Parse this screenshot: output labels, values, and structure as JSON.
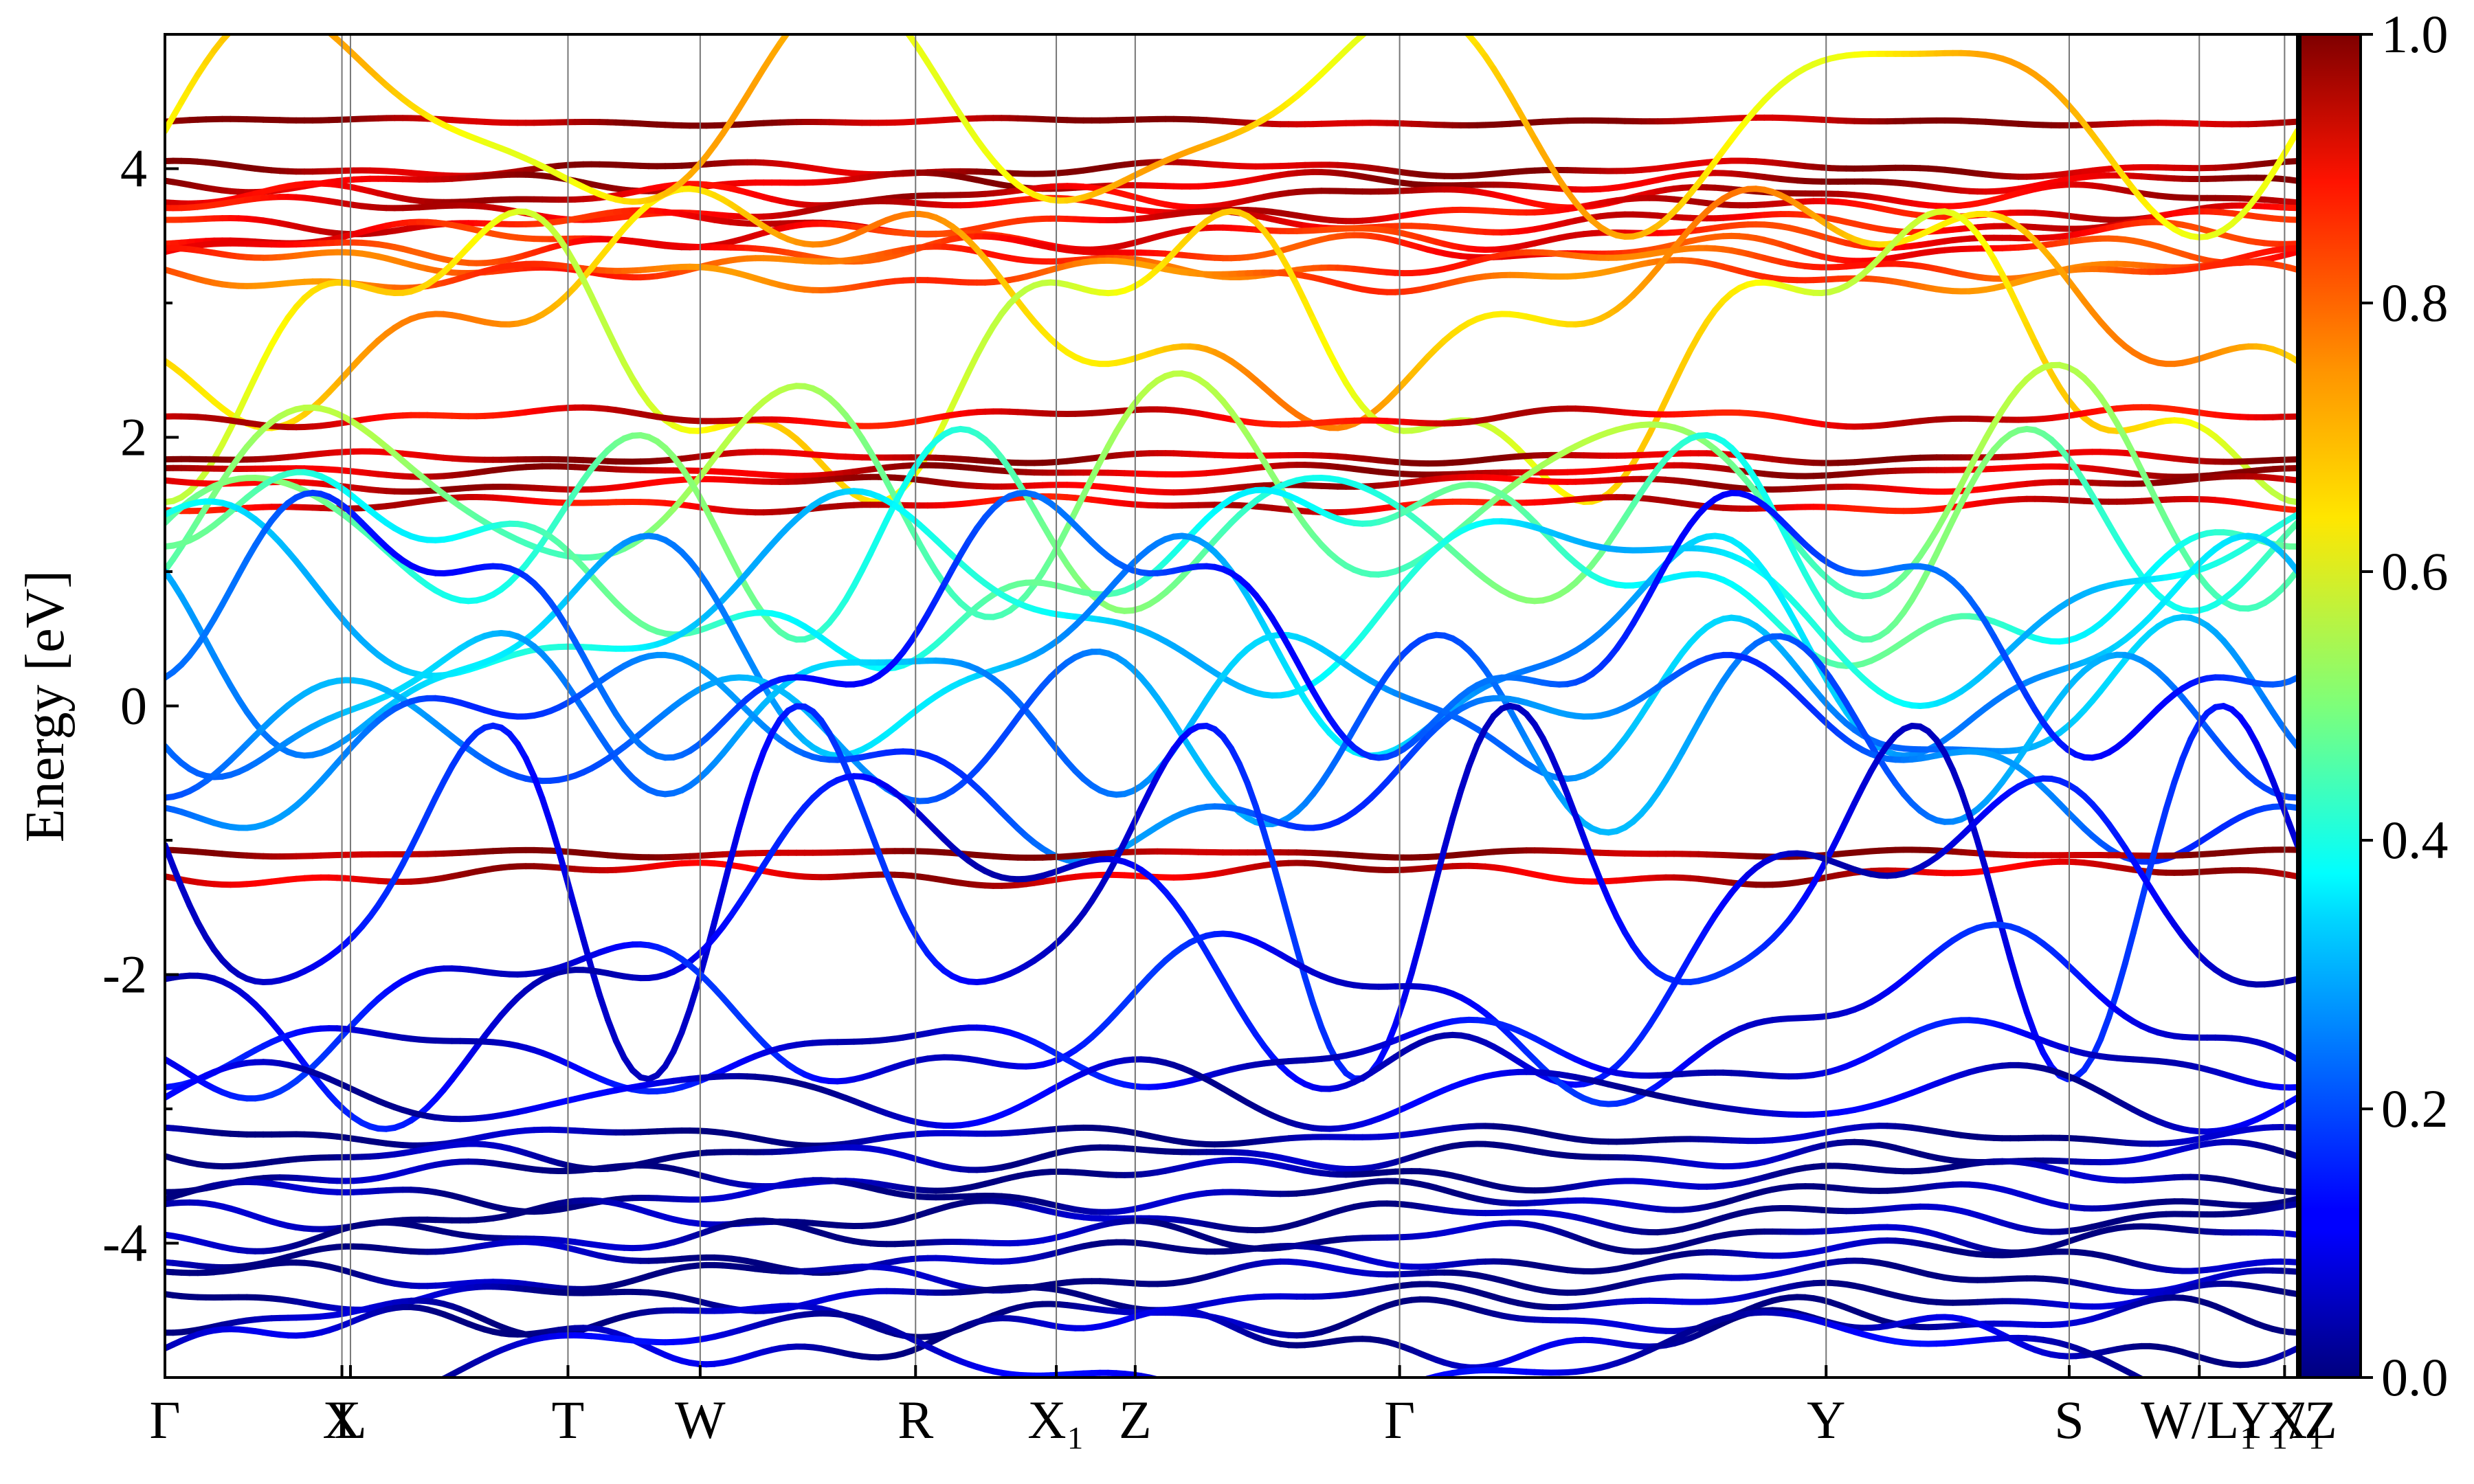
{
  "chart_data": {
    "type": "line",
    "title": "",
    "ylabel": "Energy [eV]",
    "xlabel": "",
    "ylim": [
      -5,
      5
    ],
    "y_ticks": [
      {
        "value": 4,
        "label": "4"
      },
      {
        "value": 2,
        "label": "2"
      },
      {
        "value": 0,
        "label": "0"
      },
      {
        "value": -2,
        "label": "-2"
      },
      {
        "value": -4,
        "label": "-4"
      }
    ],
    "k_path": [
      {
        "label": "Γ",
        "pos": 0.0
      },
      {
        "label": "X",
        "pos": 0.083
      },
      {
        "label": "L",
        "pos": 0.087
      },
      {
        "label": "T",
        "pos": 0.189
      },
      {
        "label": "W",
        "pos": 0.251
      },
      {
        "label": "R",
        "pos": 0.352
      },
      {
        "label": "X₁",
        "pos": 0.418
      },
      {
        "label": "Z",
        "pos": 0.455
      },
      {
        "label": "Γ",
        "pos": 0.579
      },
      {
        "label": "Y",
        "pos": 0.779
      },
      {
        "label": "S",
        "pos": 0.893
      },
      {
        "label": "W/L₁",
        "pos": 0.954
      },
      {
        "label": "Y₁/Z",
        "pos": 0.994
      },
      {
        "label": "X₁",
        "pos": 1.0
      }
    ],
    "colorbar": {
      "label": "",
      "range": [
        0.0,
        1.0
      ],
      "ticks": [
        "0.0",
        "0.2",
        "0.4",
        "0.6",
        "0.8",
        "1.0"
      ],
      "colormap": "jet"
    },
    "series": [
      {
        "kind": "flat",
        "energy": 4.35,
        "weight": 0.97,
        "amp": 0.02
      },
      {
        "kind": "flat",
        "energy": 4.0,
        "weight": 0.96,
        "amp": 0.04
      },
      {
        "kind": "flat",
        "energy": 3.9,
        "weight": 0.94,
        "amp": 0.05
      },
      {
        "kind": "flat",
        "energy": 3.8,
        "weight": 0.92,
        "amp": 0.06
      },
      {
        "kind": "flat",
        "energy": 3.7,
        "weight": 0.9,
        "amp": 0.06
      },
      {
        "kind": "flat",
        "energy": 3.6,
        "weight": 0.88,
        "amp": 0.06
      },
      {
        "kind": "flat",
        "energy": 3.5,
        "weight": 0.86,
        "amp": 0.07
      },
      {
        "kind": "flat",
        "energy": 3.4,
        "weight": 0.84,
        "amp": 0.07
      },
      {
        "kind": "flat",
        "energy": 3.3,
        "weight": 0.8,
        "amp": 0.08
      },
      {
        "kind": "flat",
        "energy": 3.2,
        "weight": 0.78,
        "amp": 0.08
      },
      {
        "kind": "disp",
        "energy": 3.0,
        "weight": 0.7,
        "amp": 0.7
      },
      {
        "kind": "disp",
        "energy": 2.6,
        "weight": 0.62,
        "amp": 0.9
      },
      {
        "kind": "disp",
        "energy": 4.4,
        "weight": 0.66,
        "amp": 0.7
      },
      {
        "kind": "flat",
        "energy": 2.15,
        "weight": 0.9,
        "amp": 0.05
      },
      {
        "kind": "flat",
        "energy": 1.85,
        "weight": 0.95,
        "amp": 0.03
      },
      {
        "kind": "flat",
        "energy": 1.75,
        "weight": 0.94,
        "amp": 0.03
      },
      {
        "kind": "flat",
        "energy": 1.65,
        "weight": 0.93,
        "amp": 0.04
      },
      {
        "kind": "flat",
        "energy": 1.5,
        "weight": 0.9,
        "amp": 0.04
      },
      {
        "kind": "disp",
        "energy": 1.6,
        "weight": 0.5,
        "amp": 0.7
      },
      {
        "kind": "disp",
        "energy": 1.3,
        "weight": 0.45,
        "amp": 0.6
      },
      {
        "kind": "disp",
        "energy": 1.0,
        "weight": 0.42,
        "amp": 0.55
      },
      {
        "kind": "disp",
        "energy": 0.8,
        "weight": 0.35,
        "amp": 0.6
      },
      {
        "kind": "disp",
        "energy": 0.4,
        "weight": 0.3,
        "amp": 0.7
      },
      {
        "kind": "disp",
        "energy": 0.0,
        "weight": 0.28,
        "amp": 0.5
      },
      {
        "kind": "disp",
        "energy": -0.2,
        "weight": 0.25,
        "amp": 0.55
      },
      {
        "kind": "disp",
        "energy": -0.4,
        "weight": 0.22,
        "amp": 0.6
      },
      {
        "kind": "disp",
        "energy": 0.6,
        "weight": 0.18,
        "amp": 0.8
      },
      {
        "kind": "flat",
        "energy": -1.1,
        "weight": 0.98,
        "amp": 0.02
      },
      {
        "kind": "flat",
        "energy": -1.25,
        "weight": 0.93,
        "amp": 0.06
      },
      {
        "kind": "disp",
        "energy": -1.3,
        "weight": 0.12,
        "amp": 1.1
      },
      {
        "kind": "disp",
        "energy": -1.8,
        "weight": 0.1,
        "amp": 1.0
      },
      {
        "kind": "disp",
        "energy": -2.3,
        "weight": 0.12,
        "amp": 0.5
      },
      {
        "kind": "disp",
        "energy": -2.6,
        "weight": 0.1,
        "amp": 0.2
      },
      {
        "kind": "disp",
        "energy": -2.9,
        "weight": 0.07,
        "amp": 0.2
      },
      {
        "kind": "flat",
        "energy": -3.2,
        "weight": 0.02,
        "amp": 0.05
      },
      {
        "kind": "flat",
        "energy": -3.35,
        "weight": 0.02,
        "amp": 0.07
      },
      {
        "kind": "flat",
        "energy": -3.5,
        "weight": 0.02,
        "amp": 0.08
      },
      {
        "kind": "flat",
        "energy": -3.65,
        "weight": 0.02,
        "amp": 0.08
      },
      {
        "kind": "flat",
        "energy": -3.8,
        "weight": 0.02,
        "amp": 0.08
      },
      {
        "kind": "flat",
        "energy": -3.95,
        "weight": 0.02,
        "amp": 0.08
      },
      {
        "kind": "flat",
        "energy": -4.1,
        "weight": 0.02,
        "amp": 0.08
      },
      {
        "kind": "flat",
        "energy": -4.25,
        "weight": 0.02,
        "amp": 0.08
      },
      {
        "kind": "flat",
        "energy": -4.4,
        "weight": 0.03,
        "amp": 0.07
      },
      {
        "kind": "flat",
        "energy": -4.55,
        "weight": 0.03,
        "amp": 0.1
      },
      {
        "kind": "flat",
        "energy": -4.7,
        "weight": 0.05,
        "amp": 0.15
      },
      {
        "kind": "disp",
        "energy": -4.9,
        "weight": 0.08,
        "amp": 0.3
      }
    ]
  }
}
